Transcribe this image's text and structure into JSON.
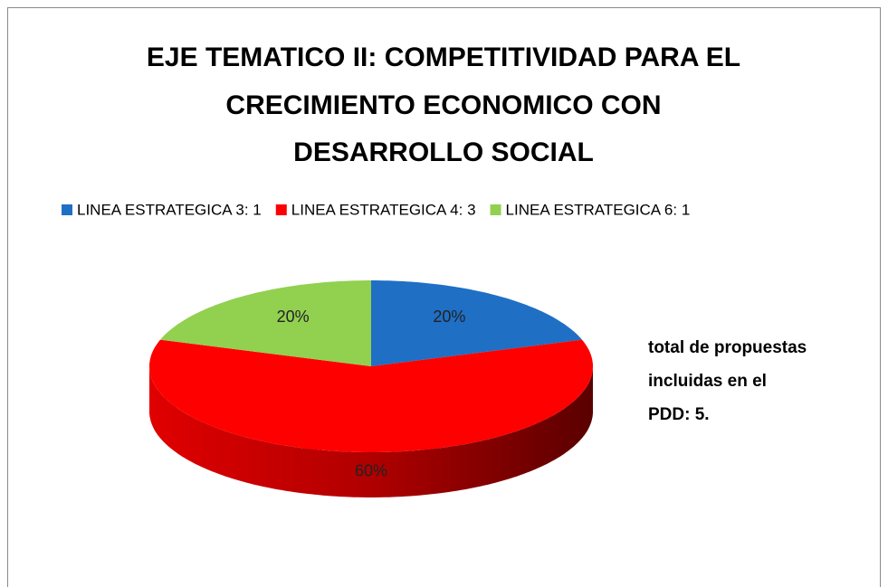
{
  "chart_data": {
    "type": "pie",
    "title": [
      "EJE TEMATICO II: COMPETITIVIDAD PARA EL",
      "CRECIMIENTO ECONOMICO CON",
      "DESARROLLO SOCIAL"
    ],
    "categories": [
      "LINEA ESTRATEGICA 3: 1",
      "LINEA ESTRATEGICA 4: 3",
      "LINEA ESTRATEGICA 6: 1"
    ],
    "values": [
      20,
      60,
      20
    ],
    "value_labels": [
      "20%",
      "60%",
      "20%"
    ],
    "colors": [
      "#1f6fc5",
      "#ff0000",
      "#92d050"
    ],
    "legend": "top",
    "annotation": [
      "total de propuestas",
      "incluidas en el",
      "PDD: 5."
    ]
  }
}
